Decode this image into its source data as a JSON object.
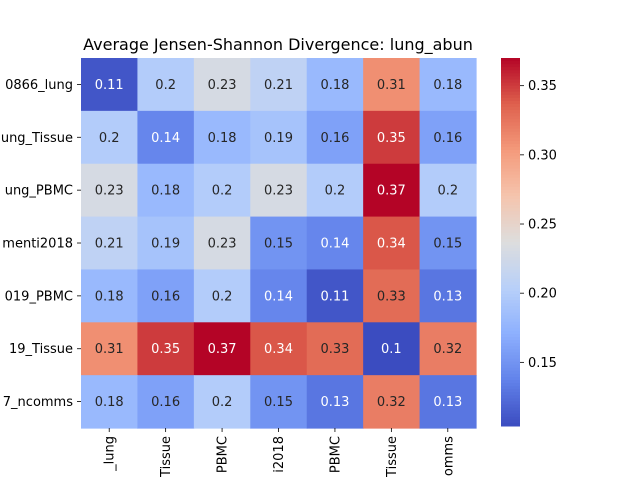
{
  "chart_data": {
    "type": "heatmap",
    "title": "Average Jensen-Shannon Divergence: lung_abun",
    "row_labels": [
      "0866_lung",
      "ung_Tissue",
      "ung_PBMC",
      "menti2018",
      "019_PBMC",
      "19_Tissue",
      "7_ncomms"
    ],
    "col_labels": [
      "_lung",
      "Tissue",
      "PBMC",
      "i2018",
      "PBMC",
      "Tissue",
      "omms"
    ],
    "cell_labels": [
      [
        "0.11",
        "0.2",
        "0.23",
        "0.21",
        "0.18",
        "0.31",
        "0.18"
      ],
      [
        "0.2",
        "0.14",
        "0.18",
        "0.19",
        "0.16",
        "0.35",
        "0.16"
      ],
      [
        "0.23",
        "0.18",
        "0.2",
        "0.23",
        "0.2",
        "0.37",
        "0.2"
      ],
      [
        "0.21",
        "0.19",
        "0.23",
        "0.15",
        "0.14",
        "0.34",
        "0.15"
      ],
      [
        "0.18",
        "0.16",
        "0.2",
        "0.14",
        "0.11",
        "0.33",
        "0.13"
      ],
      [
        "0.31",
        "0.35",
        "0.37",
        "0.34",
        "0.33",
        "0.1",
        "0.32"
      ],
      [
        "0.18",
        "0.16",
        "0.2",
        "0.15",
        "0.13",
        "0.32",
        "0.13"
      ]
    ],
    "values": [
      [
        0.11,
        0.2,
        0.23,
        0.21,
        0.18,
        0.31,
        0.18
      ],
      [
        0.2,
        0.14,
        0.18,
        0.19,
        0.16,
        0.35,
        0.16
      ],
      [
        0.23,
        0.18,
        0.2,
        0.23,
        0.2,
        0.37,
        0.2
      ],
      [
        0.21,
        0.19,
        0.23,
        0.15,
        0.14,
        0.34,
        0.15
      ],
      [
        0.18,
        0.16,
        0.2,
        0.14,
        0.11,
        0.33,
        0.13
      ],
      [
        0.31,
        0.35,
        0.37,
        0.34,
        0.33,
        0.1,
        0.32
      ],
      [
        0.18,
        0.16,
        0.2,
        0.15,
        0.13,
        0.32,
        0.13
      ]
    ],
    "colormap": "coolwarm",
    "vmin": 0.104,
    "vmax": 0.37,
    "colorbar_ticks": [
      "0.15",
      "0.20",
      "0.25",
      "0.30",
      "0.35"
    ]
  }
}
